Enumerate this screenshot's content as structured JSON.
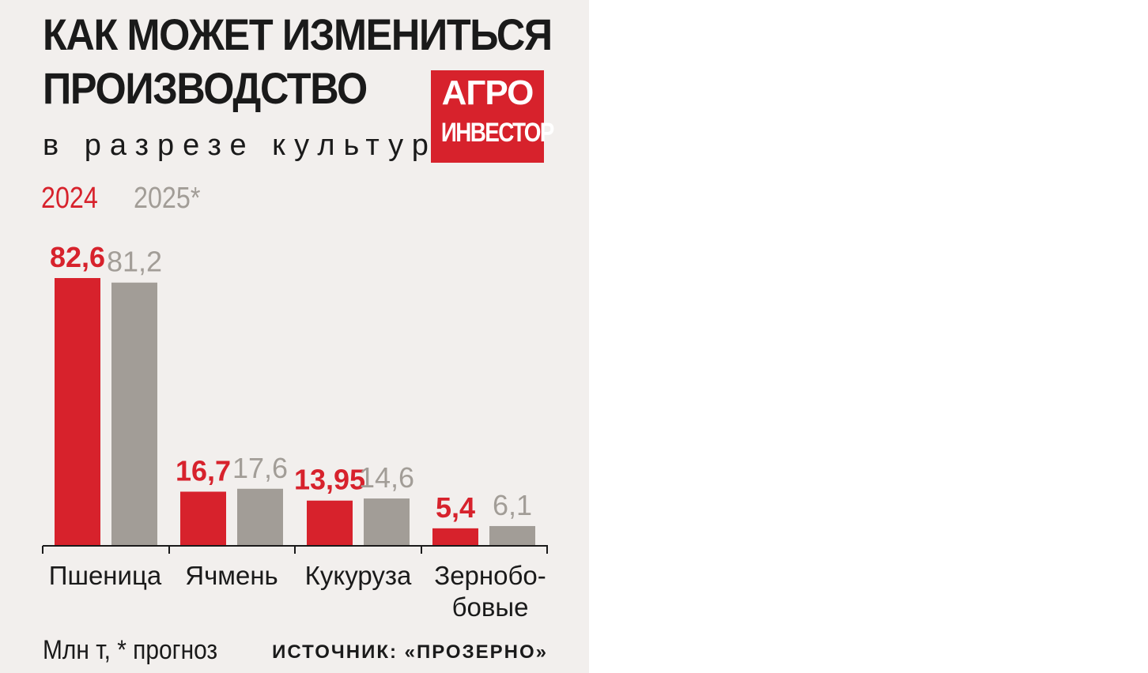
{
  "title_line1": "КАК МОЖЕТ ИЗМЕНИТЬСЯ",
  "title_line2": "ПРОИЗВОДСТВО",
  "subtitle": "в разрезе культур",
  "logo": {
    "line1": "АГРО",
    "line2": "ИНВЕСТОР"
  },
  "footer": {
    "unit_note": "Млн т, * прогноз",
    "source": "ИСТОЧНИК: «ПРОЗЕРНО»"
  },
  "colors": {
    "series_2024": "#d7222c",
    "series_2025": "#a29d97",
    "background": "#f2efed",
    "text": "#1a1a1a"
  },
  "chart_data": {
    "type": "bar",
    "title": "КАК МОЖЕТ ИЗМЕНИТЬСЯ ПРОИЗВОДСТВО",
    "subtitle": "в разрезе культур",
    "categories": [
      "Пшеница",
      "Ячмень",
      "Кукуруза",
      "Зернобо-бовые"
    ],
    "series": [
      {
        "name": "2024",
        "values": [
          82.6,
          16.7,
          13.95,
          5.4
        ],
        "labels": [
          "82,6",
          "16,7",
          "13,95",
          "5,4"
        ],
        "color": "#d7222c"
      },
      {
        "name": "2025*",
        "values": [
          81.2,
          17.6,
          14.6,
          6.1
        ],
        "labels": [
          "81,2",
          "17,6",
          "14,6",
          "6,1"
        ],
        "color": "#a29d97"
      }
    ],
    "ylim": [
      0,
      82.6
    ],
    "xlabel": "",
    "ylabel": "",
    "grid": false,
    "legend": "top-left"
  }
}
